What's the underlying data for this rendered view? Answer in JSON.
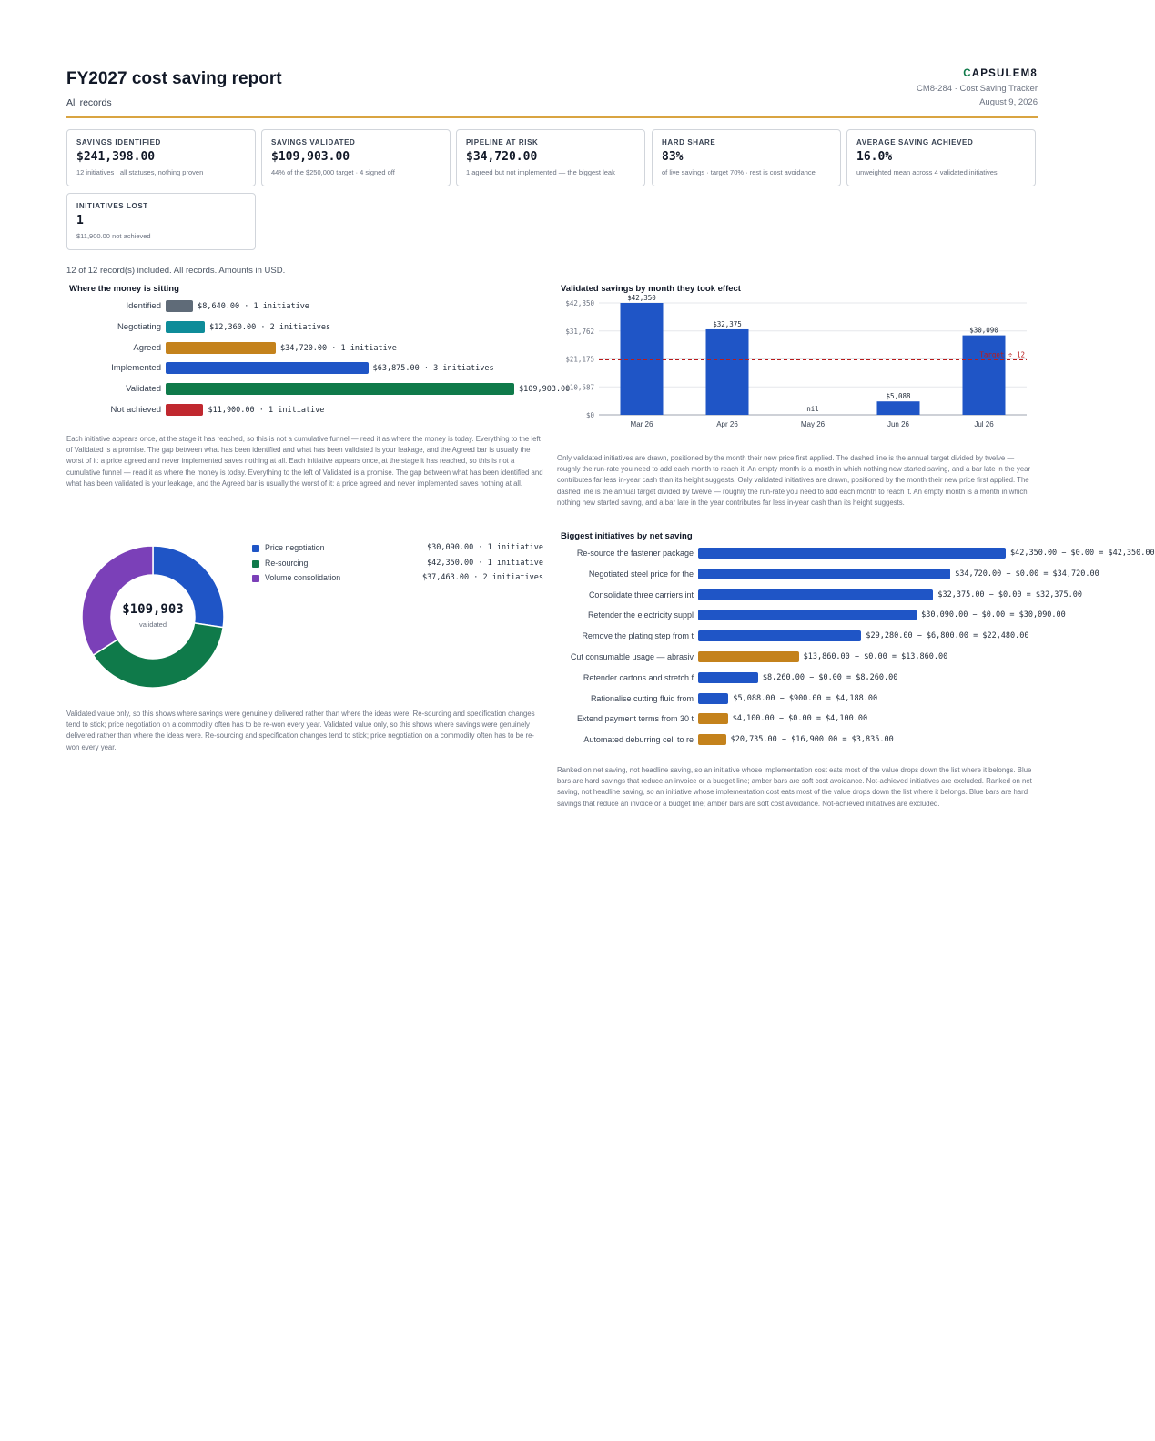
{
  "header": {
    "title": "FY2027 cost saving report",
    "subtitle": "All records",
    "brand_mark": "C",
    "brand_rest": "APSULEM8",
    "tracker": "CM8-284 · Cost Saving Tracker",
    "date": "August 9, 2026"
  },
  "kpis": [
    {
      "label": "SAVINGS IDENTIFIED",
      "value": "$241,398.00",
      "note": "12 initiatives · all statuses, nothing proven"
    },
    {
      "label": "SAVINGS VALIDATED",
      "value": "$109,903.00",
      "note": "44% of the $250,000 target · 4 signed off"
    },
    {
      "label": "PIPELINE AT RISK",
      "value": "$34,720.00",
      "note": "1 agreed but not implemented — the biggest leak"
    },
    {
      "label": "HARD SHARE",
      "value": "83%",
      "note": "of live savings · target 70% · rest is cost avoidance"
    },
    {
      "label": "AVERAGE SAVING ACHIEVED",
      "value": "16.0%",
      "note": "unweighted mean across 4 validated initiatives"
    },
    {
      "label": "INITIATIVES LOST",
      "value": "1",
      "note": "$11,900.00 not achieved"
    }
  ],
  "records_note": "12 of 12 record(s) included. All records. Amounts in USD.",
  "funnel": {
    "title": "Where the money is sitting",
    "note": "Each initiative appears once, at the stage it has reached, so this is not a cumulative funnel — read it as where the money is today. Everything to the left of Validated is a promise. The gap between what has been identified and what has been validated is your leakage, and the Agreed bar is usually the worst of it: a price agreed and never implemented saves nothing at all. Each initiative appears once, at the stage it has reached, so this is not a cumulative funnel — read it as where the money is today. Everything to the left of Validated is a promise. The gap between what has been identified and what has been validated is your leakage, and the Agreed bar is usually the worst of it: a price agreed and never implemented saves nothing at all."
  },
  "monthly": {
    "title": "Validated savings by month they took effect",
    "target_label": "Target ÷ 12",
    "note": "Only validated initiatives are drawn, positioned by the month their new price first applied. The dashed line is the annual target divided by twelve — roughly the run-rate you need to add each month to reach it. An empty month is a month in which nothing new started saving, and a bar late in the year contributes far less in-year cash than its height suggests. Only validated initiatives are drawn, positioned by the month their new price first applied. The dashed line is the annual target divided by twelve — roughly the run-rate you need to add each month to reach it. An empty month is a month in which nothing new started saving, and a bar late in the year contributes far less in-year cash than its height suggests."
  },
  "donut": {
    "center_value": "$109,903",
    "center_label": "validated",
    "note": "Validated value only, so this shows where savings were genuinely delivered rather than where the ideas were. Re-sourcing and specification changes tend to stick; price negotiation on a commodity often has to be re-won every year. Validated value only, so this shows where savings were genuinely delivered rather than where the ideas were. Re-sourcing and specification changes tend to stick; price negotiation on a commodity often has to be re-won every year."
  },
  "biggest": {
    "title": "Biggest initiatives by net saving",
    "note": "Ranked on net saving, not headline saving, so an initiative whose implementation cost eats most of the value drops down the list where it belongs. Blue bars are hard savings that reduce an invoice or a budget line; amber bars are soft cost avoidance. Not-achieved initiatives are excluded. Ranked on net saving, not headline saving, so an initiative whose implementation cost eats most of the value drops down the list where it belongs. Blue bars are hard savings that reduce an invoice or a budget line; amber bars are soft cost avoidance. Not-achieved initiatives are excluded."
  },
  "colors": {
    "identified": "#5f6b78",
    "negotiating": "#0e8c99",
    "agreed": "#c4821c",
    "implemented": "#1f55c6",
    "validated": "#0f7a4a",
    "not_achieved": "#c0282f",
    "volume": "#7b40b8",
    "hard": "#1f55c6",
    "soft": "#c4821c",
    "accent": "#d9a441"
  },
  "chart_data": [
    {
      "type": "bar",
      "orientation": "horizontal",
      "categories": [
        "Identified",
        "Negotiating",
        "Agreed",
        "Implemented",
        "Validated",
        "Not achieved"
      ],
      "values": [
        8640,
        12360,
        34720,
        63875,
        109903,
        11900
      ],
      "labels": [
        "$8,640.00 · 1 initiative",
        "$12,360.00 · 2 initiatives",
        "$34,720.00 · 1 initiative",
        "$63,875.00 · 3 initiatives",
        "$109,903.00",
        "$11,900.00 · 1 initiative"
      ],
      "colors": [
        "#5f6b78",
        "#0e8c99",
        "#c4821c",
        "#1f55c6",
        "#0f7a4a",
        "#c0282f"
      ]
    },
    {
      "type": "bar",
      "categories": [
        "Mar 26",
        "Apr 26",
        "May 26",
        "Jun 26",
        "Jul 26"
      ],
      "values": [
        42350,
        32375,
        0,
        5088,
        30090
      ],
      "value_labels": [
        "$42,350",
        "$32,375",
        "nil",
        "$5,088",
        "$30,090"
      ],
      "yticks": [
        0,
        10587,
        21175,
        31762,
        42350
      ],
      "ytick_labels": [
        "$0",
        "$10,587",
        "$21,175",
        "$31,762",
        "$42,350"
      ],
      "ylim": [
        0,
        42350
      ],
      "target": 20833,
      "grid": true
    },
    {
      "type": "pie",
      "donut": true,
      "categories": [
        "Price negotiation",
        "Re-sourcing",
        "Volume consolidation"
      ],
      "values": [
        30090,
        42350,
        37463
      ],
      "labels": [
        "$30,090.00 · 1 initiative",
        "$42,350.00 · 1 initiative",
        "$37,463.00 · 2 initiatives"
      ],
      "colors": [
        "#1f55c6",
        "#0f7a4a",
        "#7b40b8"
      ]
    },
    {
      "type": "bar",
      "orientation": "horizontal",
      "categories": [
        "Re-source the fastener package",
        "Negotiated steel price for the",
        "Consolidate three carriers int",
        "Retender the electricity suppl",
        "Remove the plating step from t",
        "Cut consumable usage — abrasiv",
        "Retender cartons and stretch f",
        "Rationalise cutting fluid from",
        "Extend payment terms from 30 t",
        "Automated deburring cell to re"
      ],
      "values": [
        42350,
        34720,
        32375,
        30090,
        22480,
        13860,
        8260,
        4188,
        4100,
        3835
      ],
      "labels": [
        "$42,350.00 − $0.00 = $42,350.00",
        "$34,720.00 − $0.00 = $34,720.00",
        "$32,375.00 − $0.00 = $32,375.00",
        "$30,090.00 − $0.00 = $30,090.00",
        "$29,280.00 − $6,800.00 = $22,480.00",
        "$13,860.00 − $0.00 = $13,860.00",
        "$8,260.00 − $0.00 = $8,260.00",
        "$5,088.00 − $900.00 = $4,188.00",
        "$4,100.00 − $0.00 = $4,100.00",
        "$20,735.00 − $16,900.00 = $3,835.00"
      ],
      "kinds": [
        "hard",
        "hard",
        "hard",
        "hard",
        "hard",
        "soft",
        "hard",
        "hard",
        "soft",
        "soft"
      ]
    }
  ]
}
